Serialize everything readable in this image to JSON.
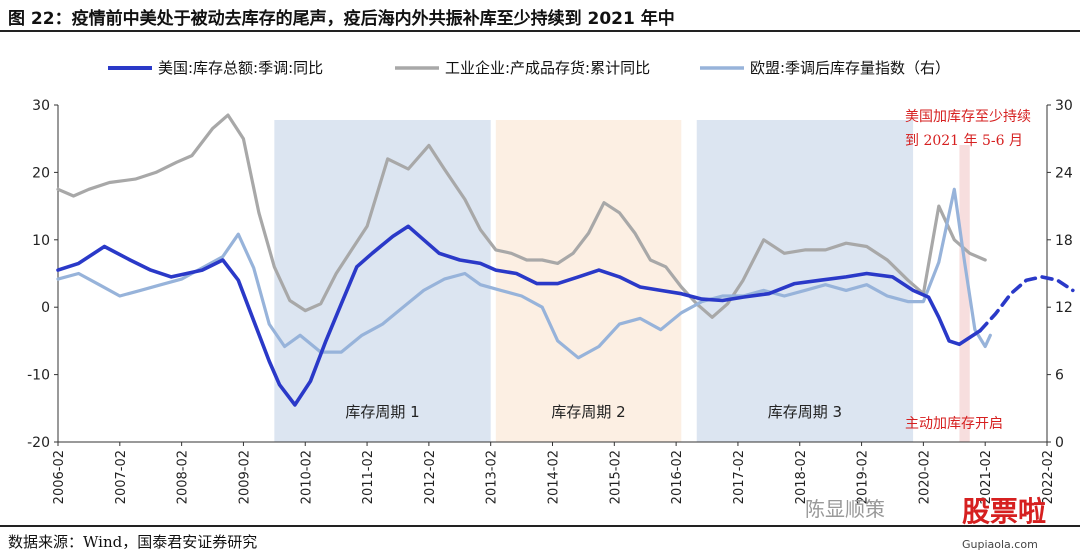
{
  "title": "图 22：疫情前中美处于被动去库存的尾声，疫后海内外共振补库至少持续到 2021 年中",
  "source": "数据来源：Wind，国泰君安证券研究",
  "watermark": "陈显顺策",
  "brand": "股票啦",
  "brand_url": "Gupiaola.com",
  "colors": {
    "us": "#2a39c8",
    "ind": "#a8a8a8",
    "eu": "#97b3da",
    "shade_blue": "#dce5f1",
    "shade_peach": "#fcefe3",
    "shade_pink": "#f7dede",
    "annotation": "#d62020"
  },
  "chart_data": {
    "type": "line",
    "xaxis": {
      "start": "2006-02",
      "end": "2022-02",
      "ticks": [
        "2006-02",
        "2007-02",
        "2008-02",
        "2009-02",
        "2010-02",
        "2011-02",
        "2012-02",
        "2013-02",
        "2014-02",
        "2015-02",
        "2016-02",
        "2017-02",
        "2018-02",
        "2019-02",
        "2020-02",
        "2021-02",
        "2022-02"
      ]
    },
    "yaxis_left": {
      "min": -20,
      "max": 30,
      "ticks": [
        "30",
        "20",
        "10",
        "0",
        "-10",
        "-20"
      ]
    },
    "yaxis_right": {
      "min": 0,
      "max": 30,
      "ticks": [
        "30",
        "24",
        "18",
        "12",
        "6",
        "0"
      ]
    },
    "legend": [
      {
        "key": "us",
        "label": "美国:库存总额:季调:同比"
      },
      {
        "key": "ind",
        "label": "工业企业:产成品存货:累计同比"
      },
      {
        "key": "eu",
        "label": "欧盟:季调后库存量指数（右）"
      }
    ],
    "shaded_regions": [
      {
        "label": "库存周期 1",
        "from": "2009-08",
        "to": "2013-02",
        "color": "shade_blue"
      },
      {
        "label": "库存周期 2",
        "from": "2013-03",
        "to": "2016-03",
        "color": "shade_peach"
      },
      {
        "label": "库存周期 3",
        "from": "2016-06",
        "to": "2019-12",
        "color": "shade_blue"
      },
      {
        "label": "",
        "from": "2020-09",
        "to": "2020-11",
        "color": "shade_pink"
      }
    ],
    "annotations": [
      {
        "lines": [
          "美国加库存至少持续",
          "到 2021 年 5-6 月"
        ],
        "position": "top-right"
      },
      {
        "lines": [
          "主动加库存开启"
        ],
        "position": "bottom-right"
      }
    ],
    "series": [
      {
        "key": "us",
        "axis": "left",
        "points": [
          [
            "2006-02",
            5.5
          ],
          [
            "2006-06",
            6.5
          ],
          [
            "2006-11",
            9.0
          ],
          [
            "2007-04",
            7.0
          ],
          [
            "2007-08",
            5.5
          ],
          [
            "2007-12",
            4.5
          ],
          [
            "2008-06",
            5.5
          ],
          [
            "2008-10",
            7.0
          ],
          [
            "2009-01",
            4.0
          ],
          [
            "2009-04",
            -2.0
          ],
          [
            "2009-07",
            -8.0
          ],
          [
            "2009-09",
            -11.5
          ],
          [
            "2009-12",
            -14.5
          ],
          [
            "2010-03",
            -11.0
          ],
          [
            "2010-06",
            -5.0
          ],
          [
            "2010-09",
            0.5
          ],
          [
            "2010-12",
            6.0
          ],
          [
            "2011-03",
            8.0
          ],
          [
            "2011-07",
            10.5
          ],
          [
            "2011-10",
            12.0
          ],
          [
            "2012-01",
            10.0
          ],
          [
            "2012-04",
            8.0
          ],
          [
            "2012-08",
            7.0
          ],
          [
            "2012-12",
            6.5
          ],
          [
            "2013-03",
            5.5
          ],
          [
            "2013-07",
            5.0
          ],
          [
            "2013-11",
            3.5
          ],
          [
            "2014-03",
            3.5
          ],
          [
            "2014-07",
            4.5
          ],
          [
            "2014-11",
            5.5
          ],
          [
            "2015-03",
            4.5
          ],
          [
            "2015-07",
            3.0
          ],
          [
            "2015-11",
            2.5
          ],
          [
            "2016-03",
            2.0
          ],
          [
            "2016-07",
            1.2
          ],
          [
            "2016-11",
            1.0
          ],
          [
            "2017-03",
            1.5
          ],
          [
            "2017-08",
            2.0
          ],
          [
            "2018-01",
            3.5
          ],
          [
            "2018-06",
            4.0
          ],
          [
            "2018-11",
            4.5
          ],
          [
            "2019-03",
            5.0
          ],
          [
            "2019-08",
            4.5
          ],
          [
            "2019-12",
            2.5
          ],
          [
            "2020-03",
            1.5
          ],
          [
            "2020-05",
            -1.5
          ],
          [
            "2020-07",
            -5.0
          ],
          [
            "2020-09",
            -5.5
          ],
          [
            "2020-11",
            -4.5
          ],
          [
            "2021-01",
            -3.5
          ]
        ]
      },
      {
        "key": "us_fcst",
        "axis": "left",
        "dashed": true,
        "points": [
          [
            "2021-01",
            -3.5
          ],
          [
            "2021-04",
            -1.0
          ],
          [
            "2021-07",
            2.0
          ],
          [
            "2021-10",
            4.0
          ],
          [
            "2022-01",
            4.5
          ],
          [
            "2022-04",
            4.0
          ],
          [
            "2022-07",
            2.5
          ]
        ]
      },
      {
        "key": "ind",
        "axis": "left",
        "points": [
          [
            "2006-02",
            17.5
          ],
          [
            "2006-05",
            16.5
          ],
          [
            "2006-08",
            17.5
          ],
          [
            "2006-12",
            18.5
          ],
          [
            "2007-05",
            19.0
          ],
          [
            "2007-09",
            20.0
          ],
          [
            "2008-01",
            21.5
          ],
          [
            "2008-04",
            22.5
          ],
          [
            "2008-08",
            26.5
          ],
          [
            "2008-11",
            28.5
          ],
          [
            "2009-02",
            25.0
          ],
          [
            "2009-05",
            14.0
          ],
          [
            "2009-08",
            6.0
          ],
          [
            "2009-11",
            1.0
          ],
          [
            "2010-02",
            -0.5
          ],
          [
            "2010-05",
            0.5
          ],
          [
            "2010-08",
            5.0
          ],
          [
            "2010-11",
            8.5
          ],
          [
            "2011-02",
            12.0
          ],
          [
            "2011-06",
            22.0
          ],
          [
            "2011-10",
            20.5
          ],
          [
            "2012-02",
            24.0
          ],
          [
            "2012-05",
            20.5
          ],
          [
            "2012-09",
            16.0
          ],
          [
            "2012-12",
            11.5
          ],
          [
            "2013-03",
            8.5
          ],
          [
            "2013-06",
            8.0
          ],
          [
            "2013-09",
            7.0
          ],
          [
            "2013-12",
            7.0
          ],
          [
            "2014-03",
            6.5
          ],
          [
            "2014-06",
            8.0
          ],
          [
            "2014-09",
            11.0
          ],
          [
            "2014-12",
            15.5
          ],
          [
            "2015-03",
            14.0
          ],
          [
            "2015-06",
            11.0
          ],
          [
            "2015-09",
            7.0
          ],
          [
            "2015-12",
            6.0
          ],
          [
            "2016-03",
            3.0
          ],
          [
            "2016-06",
            0.5
          ],
          [
            "2016-09",
            -1.5
          ],
          [
            "2016-12",
            0.5
          ],
          [
            "2017-03",
            4.0
          ],
          [
            "2017-07",
            10.0
          ],
          [
            "2017-11",
            8.0
          ],
          [
            "2018-03",
            8.5
          ],
          [
            "2018-07",
            8.5
          ],
          [
            "2018-11",
            9.5
          ],
          [
            "2019-03",
            9.0
          ],
          [
            "2019-07",
            7.0
          ],
          [
            "2019-11",
            4.0
          ],
          [
            "2020-02",
            2.0
          ],
          [
            "2020-05",
            15.0
          ],
          [
            "2020-08",
            10.0
          ],
          [
            "2020-11",
            8.0
          ],
          [
            "2021-02",
            7.0
          ]
        ]
      },
      {
        "key": "eu",
        "axis": "right",
        "points": [
          [
            "2006-02",
            14.5
          ],
          [
            "2006-06",
            15.0
          ],
          [
            "2006-10",
            14.0
          ],
          [
            "2007-02",
            13.0
          ],
          [
            "2007-06",
            13.5
          ],
          [
            "2007-10",
            14.0
          ],
          [
            "2008-02",
            14.5
          ],
          [
            "2008-06",
            15.5
          ],
          [
            "2008-10",
            16.5
          ],
          [
            "2009-01",
            18.5
          ],
          [
            "2009-04",
            15.5
          ],
          [
            "2009-07",
            10.5
          ],
          [
            "2009-10",
            8.5
          ],
          [
            "2010-01",
            9.5
          ],
          [
            "2010-05",
            8.0
          ],
          [
            "2010-09",
            8.0
          ],
          [
            "2011-01",
            9.5
          ],
          [
            "2011-05",
            10.5
          ],
          [
            "2011-09",
            12.0
          ],
          [
            "2012-01",
            13.5
          ],
          [
            "2012-05",
            14.5
          ],
          [
            "2012-09",
            15.0
          ],
          [
            "2012-12",
            14.0
          ],
          [
            "2013-04",
            13.5
          ],
          [
            "2013-08",
            13.0
          ],
          [
            "2013-12",
            12.0
          ],
          [
            "2014-03",
            9.0
          ],
          [
            "2014-07",
            7.5
          ],
          [
            "2014-11",
            8.5
          ],
          [
            "2015-03",
            10.5
          ],
          [
            "2015-07",
            11.0
          ],
          [
            "2015-11",
            10.0
          ],
          [
            "2016-03",
            11.5
          ],
          [
            "2016-07",
            12.5
          ],
          [
            "2016-11",
            13.0
          ],
          [
            "2017-03",
            13.0
          ],
          [
            "2017-07",
            13.5
          ],
          [
            "2017-11",
            13.0
          ],
          [
            "2018-03",
            13.5
          ],
          [
            "2018-07",
            14.0
          ],
          [
            "2018-11",
            13.5
          ],
          [
            "2019-03",
            14.0
          ],
          [
            "2019-07",
            13.0
          ],
          [
            "2019-11",
            12.5
          ],
          [
            "2020-02",
            12.5
          ],
          [
            "2020-05",
            16.0
          ],
          [
            "2020-08",
            22.5
          ],
          [
            "2020-10",
            16.0
          ],
          [
            "2020-12",
            10.0
          ],
          [
            "2021-02",
            8.5
          ],
          [
            "2021-03",
            9.5
          ]
        ]
      }
    ]
  }
}
